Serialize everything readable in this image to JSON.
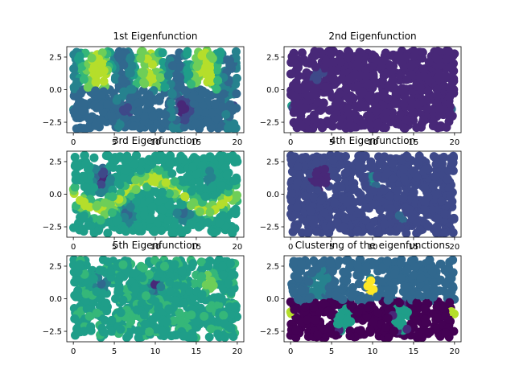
{
  "chart_data": {
    "type": "scatter",
    "palette": "viridis",
    "x_range_description": "x values between 0 and 20; y values between about -3 and 3",
    "panels": [
      {
        "title": "1st Eigenfunction",
        "xlim": [
          -0.8,
          20.8
        ],
        "ylim": [
          -3.3,
          3.3
        ],
        "xticks": [
          0,
          5,
          10,
          15,
          20
        ],
        "xtick_labels": [
          "0",
          "5",
          "10",
          "15",
          "20"
        ],
        "yticks": [
          2.5,
          0.0,
          -2.5
        ],
        "ytick_labels": [
          "2.5",
          "0.0",
          "−2.5"
        ],
        "blobs": [
          {
            "x": 3.5,
            "y": 1.2,
            "r": 1.4,
            "v": 0.95
          },
          {
            "x": 10,
            "y": 1.0,
            "r": 1.3,
            "v": 0.85
          },
          {
            "x": 16.5,
            "y": 1.2,
            "r": 1.4,
            "v": 0.95
          },
          {
            "x": 13.5,
            "y": -1.5,
            "r": 1.4,
            "v": 0.05
          },
          {
            "x": 6.5,
            "y": -1.7,
            "r": 1.3,
            "v": 0.2
          },
          {
            "x": 0,
            "y": -1.0,
            "r": 0.5,
            "v": 0.0
          },
          {
            "x": 19.5,
            "y": -1.3,
            "r": 1.0,
            "v": 0.25
          }
        ],
        "base": "wave1"
      },
      {
        "title": "2nd Eigenfunction",
        "xlim": [
          -0.8,
          20.8
        ],
        "ylim": [
          -3.3,
          3.3
        ],
        "xticks": [
          0,
          5,
          10,
          15,
          20
        ],
        "xtick_labels": [
          "0",
          "5",
          "10",
          "15",
          "20"
        ],
        "yticks": [
          2.5,
          0.0,
          -2.5
        ],
        "ytick_labels": [
          "2.5",
          "0.0",
          "−2.5"
        ],
        "blobs": [
          {
            "x": 0,
            "y": -1.0,
            "r": 0.5,
            "v": 1.0
          },
          {
            "x": 20,
            "y": -1.3,
            "r": 0.6,
            "v": 0.65
          },
          {
            "x": 3.5,
            "y": 1.2,
            "r": 1.3,
            "v": 0.22
          }
        ],
        "base": "dark"
      },
      {
        "title": "3rd Eigenfunction",
        "xlim": [
          -0.8,
          20.8
        ],
        "ylim": [
          -3.3,
          3.3
        ],
        "xticks": [
          0,
          5,
          10,
          15,
          20
        ],
        "xtick_labels": [
          "0",
          "5",
          "10",
          "15",
          "20"
        ],
        "yticks": [
          2.5,
          0.0,
          -2.5
        ],
        "ytick_labels": [
          "2.5",
          "0.0",
          "−2.5"
        ],
        "blobs": [
          {
            "x": 3.5,
            "y": 1.2,
            "r": 1.3,
            "v": 0.05
          },
          {
            "x": 6.5,
            "y": -1.5,
            "r": 1.3,
            "v": 0.35
          },
          {
            "x": 13.5,
            "y": -1.5,
            "r": 1.3,
            "v": 0.35
          },
          {
            "x": 16.5,
            "y": 1.3,
            "r": 1.3,
            "v": 0.45
          },
          {
            "x": 10,
            "y": 1.1,
            "r": 0.6,
            "v": 0.95
          }
        ],
        "base": "wave3"
      },
      {
        "title": "4th Eigenfunction",
        "xlim": [
          -0.8,
          20.8
        ],
        "ylim": [
          -3.3,
          3.3
        ],
        "xticks": [
          0,
          5,
          10,
          15,
          20
        ],
        "xtick_labels": [
          "0",
          "5",
          "10",
          "15",
          "20"
        ],
        "yticks": [
          2.5,
          0.0,
          -2.5
        ],
        "ytick_labels": [
          "2.5",
          "0.0",
          "−2.5"
        ],
        "blobs": [
          {
            "x": 3.5,
            "y": 1.2,
            "r": 1.3,
            "v": 0.02
          },
          {
            "x": 10,
            "y": 1.0,
            "r": 0.7,
            "v": 0.75
          },
          {
            "x": 13.5,
            "y": -1.8,
            "r": 1.2,
            "v": 0.35
          },
          {
            "x": 6.5,
            "y": -1.7,
            "r": 1.1,
            "v": 0.28
          }
        ],
        "base": "dark4"
      },
      {
        "title": "5th Eigenfunction",
        "xlim": [
          -0.8,
          20.8
        ],
        "ylim": [
          -3.3,
          3.3
        ],
        "xticks": [
          0,
          5,
          10,
          15,
          20
        ],
        "xtick_labels": [
          "0",
          "5",
          "10",
          "15",
          "20"
        ],
        "yticks": [
          2.5,
          0.0,
          -2.5
        ],
        "ytick_labels": [
          "2.5",
          "0.0",
          "−2.5"
        ],
        "blobs": [
          {
            "x": 3.5,
            "y": 1.2,
            "r": 1.2,
            "v": 0.3
          },
          {
            "x": 10,
            "y": 1.0,
            "r": 0.8,
            "v": 0.1
          },
          {
            "x": 16.5,
            "y": 1.2,
            "r": 1.2,
            "v": 0.9
          },
          {
            "x": 13.5,
            "y": -1.5,
            "r": 1.2,
            "v": 0.78
          },
          {
            "x": 6.5,
            "y": -1.6,
            "r": 1.2,
            "v": 0.68
          }
        ],
        "base": "mid5"
      },
      {
        "title": "Clustering of the eigenfunctions",
        "xlim": [
          -0.8,
          20.8
        ],
        "ylim": [
          -3.3,
          3.3
        ],
        "xticks": [
          0,
          5,
          10,
          15,
          20
        ],
        "xtick_labels": [
          "0",
          "5",
          "10",
          "15",
          "20"
        ],
        "yticks": [
          2.5,
          0.0,
          -2.5
        ],
        "ytick_labels": [
          "2.5",
          "0.0",
          "−2.5"
        ],
        "blobs": [
          {
            "x": 3.5,
            "y": 1.2,
            "r": 1.3,
            "v": 0.45
          },
          {
            "x": 17.5,
            "y": 1.3,
            "r": 1.3,
            "v": 0.33
          },
          {
            "x": 6.5,
            "y": -1.5,
            "r": 1.2,
            "v": 0.6
          },
          {
            "x": 13.5,
            "y": -1.5,
            "r": 1.2,
            "v": 0.6
          },
          {
            "x": 10,
            "y": 1.0,
            "r": 0.7,
            "v": 1.0
          },
          {
            "x": 0,
            "y": -1.0,
            "r": 0.5,
            "v": 0.85
          },
          {
            "x": 20,
            "y": -1.2,
            "r": 0.7,
            "v": 0.85
          }
        ],
        "base": "cluster"
      }
    ]
  }
}
